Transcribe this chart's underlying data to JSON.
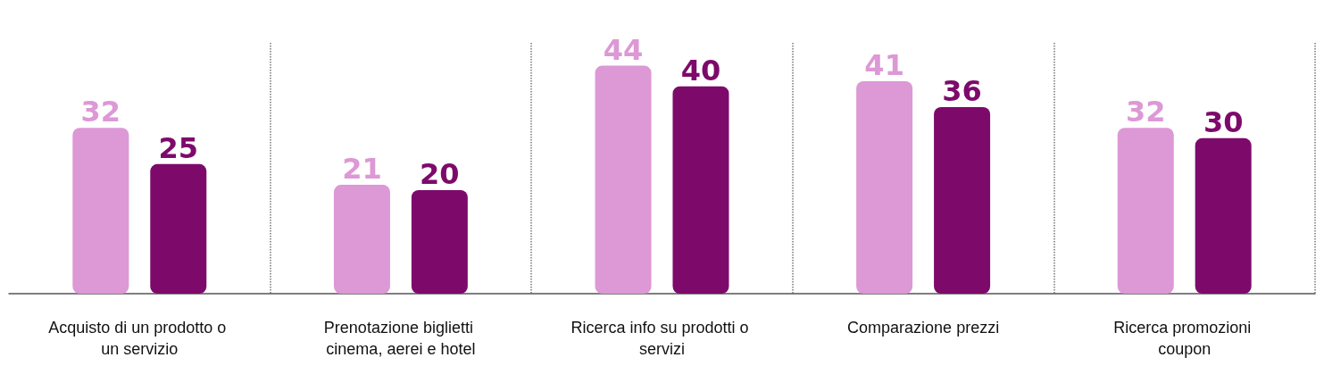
{
  "chart_data": {
    "type": "bar",
    "categories": [
      "Acquisto di un prodotto o un servizio",
      "Prenotazione biglietti cinema, aerei e hotel",
      "Ricerca info su prodotti o servizi",
      "Comparazione prezzi",
      "Ricerca promozioni coupon"
    ],
    "series": [
      {
        "color": "#dd98d6",
        "values": [
          32,
          21,
          44,
          41,
          32
        ]
      },
      {
        "color": "#7d0a6b",
        "values": [
          25,
          20,
          40,
          36,
          30
        ]
      }
    ],
    "data_labels": true,
    "grid": "x"
  }
}
